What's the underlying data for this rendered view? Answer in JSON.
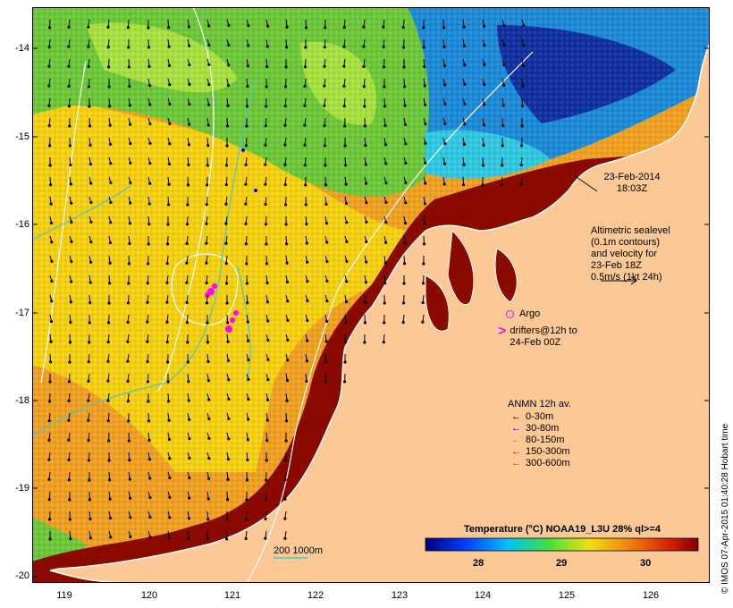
{
  "map": {
    "latitude_labels": [
      "-14",
      "-15",
      "-16",
      "-17",
      "-18",
      "-19",
      "-20"
    ],
    "longitude_labels": [
      "119",
      "120",
      "121",
      "122",
      "123",
      "124",
      "125",
      "126"
    ],
    "date_line1": "23-Feb-2014",
    "date_line2": "18:03Z",
    "altimetry_lines": [
      "Altimetric sealevel",
      "(0.1m contours)",
      "and velocity for",
      "23-Feb 18Z",
      "0.5m/s (1kt 24h)"
    ],
    "argo_label": "Argo",
    "drifter_label_line1": "drifters@12h to",
    "drifter_label_line2": "24-Feb 00Z",
    "scale_label": "200  1000m",
    "colors": {
      "land": "#fbc896",
      "warm": "#8b0a00",
      "bathy": "#4fc4c4",
      "argo": "#e020e0"
    }
  },
  "legend": {
    "title": "ANMN 12h av.",
    "items": [
      {
        "label": "0-30m",
        "color": "#000000"
      },
      {
        "label": "30-80m",
        "color": "#0000ff"
      },
      {
        "label": "80-150m",
        "color": "#00c8c8"
      },
      {
        "label": "150-300m",
        "color": "#ff0000"
      },
      {
        "label": "300-600m",
        "color": "#ff00ff"
      }
    ]
  },
  "colorbar": {
    "title": "Temperature (°C) NOAA19_L3U 28% ql>=4",
    "ticks": [
      "28",
      "29",
      "30"
    ]
  },
  "credit": "© IMOS 07-Apr-2015 01:40:28 Hobart time"
}
